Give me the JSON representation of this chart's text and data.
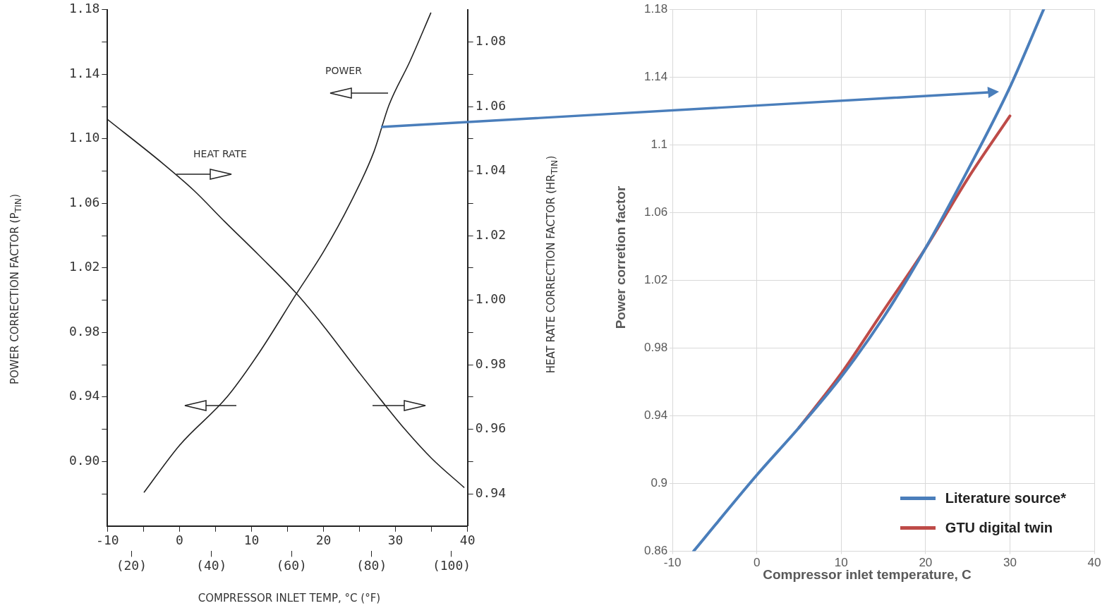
{
  "chart_data": [
    {
      "type": "line",
      "xlabel": "COMPRESSOR INLET TEMP, °C (°F)",
      "ylabel": "POWER CORRECTION FACTOR (P$_{TIN}$)",
      "y2label": "HEAT RATE CORRECTION FACTOR (HR$_{TIN}$)",
      "annotations": [
        "POWER",
        "HEAT RATE"
      ],
      "series": [
        {
          "color": "#222222",
          "x": [
            -4.9,
            0,
            6.6,
            11,
            16.1,
            20,
            23.7,
            27,
            29.1,
            32,
            34.9
          ],
          "values": [
            0.881,
            0.91,
            0.94,
            0.967,
            1.003,
            1.03,
            1.06,
            1.092,
            1.121,
            1.148,
            1.178
          ]
        },
        {
          "color": "#222222",
          "axis": "y2",
          "x": [
            -10,
            -2.4,
            2,
            6.3,
            11,
            16.1,
            20,
            24.8,
            28,
            31.3,
            35,
            39.5
          ],
          "values": [
            1.056,
            1.0425,
            1.034,
            1.0243,
            1.014,
            1.0024,
            0.992,
            0.978,
            0.969,
            0.96,
            0.951,
            0.942
          ]
        }
      ],
      "xlim": [
        -10,
        40
      ],
      "xticks": [
        -10,
        {
          "value": -5,
          "label": null
        },
        0,
        {
          "value": 5,
          "label": null
        },
        10,
        {
          "value": 15,
          "label": null
        },
        20,
        {
          "value": 25,
          "label": null
        },
        30,
        {
          "value": 35,
          "label": null
        },
        40
      ],
      "x2lim": [
        14,
        104
      ],
      "x2ticks": [
        {
          "value": 20,
          "label": "(20)"
        },
        {
          "value": 40,
          "label": "(40)"
        },
        {
          "value": 60,
          "label": "(60)"
        },
        {
          "value": 80,
          "label": "(80)"
        },
        {
          "value": 100,
          "label": "(100)"
        }
      ],
      "ylim": [
        0.86,
        1.18
      ],
      "yticks": [
        {
          "value": 0.88,
          "label": null
        },
        "0.90",
        {
          "value": 0.92,
          "label": null
        },
        0.94,
        {
          "value": 0.96,
          "label": null
        },
        0.98,
        {
          "value": 1.0,
          "label": null
        },
        1.02,
        {
          "value": 1.04,
          "label": null
        },
        1.06,
        {
          "value": 1.08,
          "label": null
        },
        "1.10",
        {
          "value": 1.12,
          "label": null
        },
        1.14,
        {
          "value": 1.16,
          "label": null
        },
        1.18
      ],
      "y2lim": [
        0.93,
        1.09
      ],
      "y2ticks": [
        {
          "value": 0.94,
          "label": "0.94"
        },
        {
          "value": 0.95,
          "label": null
        },
        {
          "value": 0.96,
          "label": "0.96"
        },
        {
          "value": 0.97,
          "label": null
        },
        {
          "value": 0.98,
          "label": "0.98"
        },
        {
          "value": 0.99,
          "label": null
        },
        {
          "value": 1.0,
          "label": "1.00"
        },
        {
          "value": 1.01,
          "label": null
        },
        {
          "value": 1.02,
          "label": "1.02"
        },
        {
          "value": 1.03,
          "label": null
        },
        {
          "value": 1.04,
          "label": "1.04"
        },
        {
          "value": 1.05,
          "label": null
        },
        {
          "value": 1.06,
          "label": "1.06"
        },
        {
          "value": 1.07,
          "label": null
        },
        {
          "value": 1.08,
          "label": "1.08"
        }
      ],
      "grid": false,
      "marker": "none"
    },
    {
      "type": "line",
      "xlabel": "Compressor inlet temperature, C",
      "ylabel": "Power corretion factor",
      "series": [
        {
          "name": "Literature source*",
          "color": "#4a7ebb",
          "x": [
            -7.5,
            0,
            5,
            10,
            15,
            20,
            25,
            29.9,
            34
          ],
          "values": [
            0.86,
            0.905,
            0.933,
            0.963,
            0.998,
            1.039,
            1.085,
            1.133,
            1.18
          ]
        },
        {
          "name": "GTU digital twin",
          "color": "#be4b48",
          "x": [
            5,
            10,
            15,
            20,
            25,
            30
          ],
          "values": [
            0.933,
            0.965,
            1.002,
            1.039,
            1.08,
            1.117
          ]
        }
      ],
      "xlim": [
        -10,
        40
      ],
      "xticks": [
        -10,
        0,
        10,
        20,
        30,
        40
      ],
      "ylim": [
        0.86,
        1.18
      ],
      "yticks": [
        0.86,
        0.9,
        0.94,
        0.98,
        1.02,
        1.06,
        1.1,
        1.14,
        1.18
      ],
      "grid": true,
      "legend": "bottom right",
      "marker": "none"
    }
  ]
}
